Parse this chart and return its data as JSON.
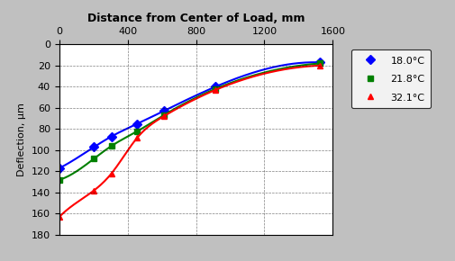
{
  "title": "Distance from Center of Load, mm",
  "ylabel": "Deflection, μm",
  "xlim": [
    0,
    1600
  ],
  "ylim": [
    180,
    0
  ],
  "xticks": [
    0,
    400,
    800,
    1200,
    1600
  ],
  "yticks": [
    0,
    20,
    40,
    60,
    80,
    100,
    120,
    140,
    160,
    180
  ],
  "series": [
    {
      "label": "18.0°C",
      "color": "#0000FF",
      "marker": "D",
      "x": [
        0,
        203,
        305,
        457,
        610,
        914,
        1524
      ],
      "y": [
        117,
        97,
        87,
        75,
        63,
        40,
        17
      ]
    },
    {
      "label": "21.8°C",
      "color": "#008000",
      "marker": "s",
      "x": [
        0,
        203,
        305,
        457,
        610,
        914,
        1524
      ],
      "y": [
        128,
        108,
        96,
        82,
        67,
        42,
        18
      ]
    },
    {
      "label": "32.1°C",
      "color": "#FF0000",
      "marker": "^",
      "x": [
        0,
        203,
        305,
        457,
        610,
        914,
        1524
      ],
      "y": [
        163,
        138,
        122,
        88,
        68,
        43,
        20
      ]
    }
  ],
  "background_color": "#FFFFFF",
  "grid_color": "#000000",
  "figure_bg": "#C0C0C0"
}
